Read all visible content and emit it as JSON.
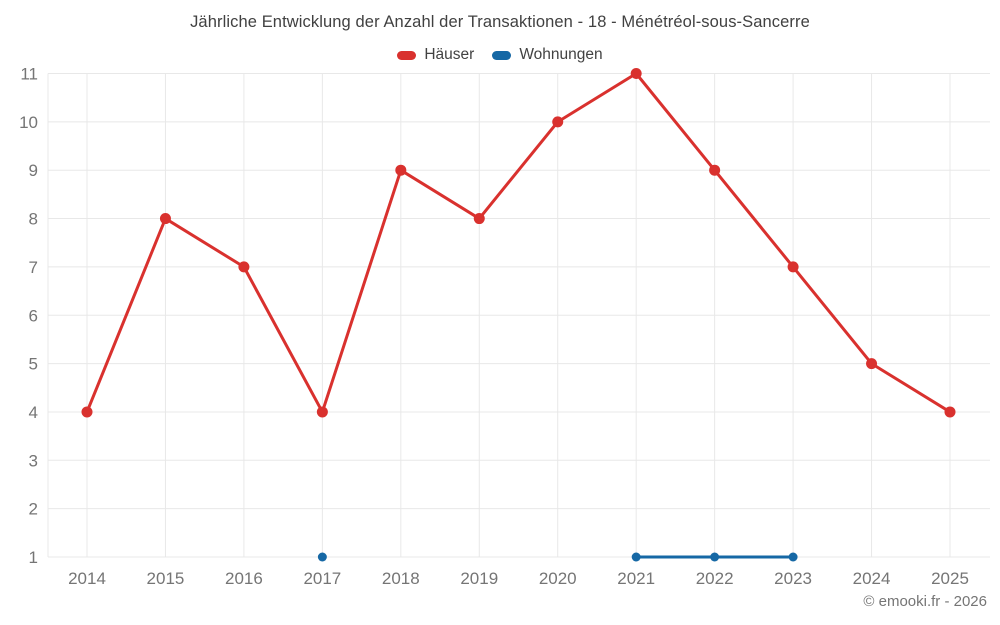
{
  "page": {
    "copyright": "© emooki.fr - 2026"
  },
  "colors": {
    "haeuser": "#d9312e",
    "wohnungen": "#1668a5",
    "grid": "#e8e8e8",
    "tick_text": "#757575",
    "title_text": "#414141"
  },
  "chart_data": {
    "type": "line",
    "title": "Jährliche Entwicklung der Anzahl der Transaktionen - 18 - Ménétréol-sous-Sancerre",
    "categories": [
      "2014",
      "2015",
      "2016",
      "2017",
      "2018",
      "2019",
      "2020",
      "2021",
      "2022",
      "2023",
      "2024",
      "2025"
    ],
    "series": [
      {
        "id": "haeuser",
        "name": "Häuser",
        "color": "#d9312e",
        "point_radius": 5.5,
        "values": [
          4,
          8,
          7,
          4,
          9,
          8,
          10,
          11,
          9,
          7,
          5,
          4
        ]
      },
      {
        "id": "wohnungen",
        "name": "Wohnungen",
        "color": "#1668a5",
        "point_radius": 4.5,
        "values": [
          null,
          null,
          null,
          1,
          null,
          null,
          null,
          1,
          1,
          1,
          null,
          null
        ]
      }
    ],
    "xlabel": "",
    "ylabel": "",
    "ylim": [
      1,
      11
    ],
    "y_ticks": [
      1,
      2,
      3,
      4,
      5,
      6,
      7,
      8,
      9,
      10,
      11
    ],
    "grid": true,
    "legend_position": "top"
  }
}
